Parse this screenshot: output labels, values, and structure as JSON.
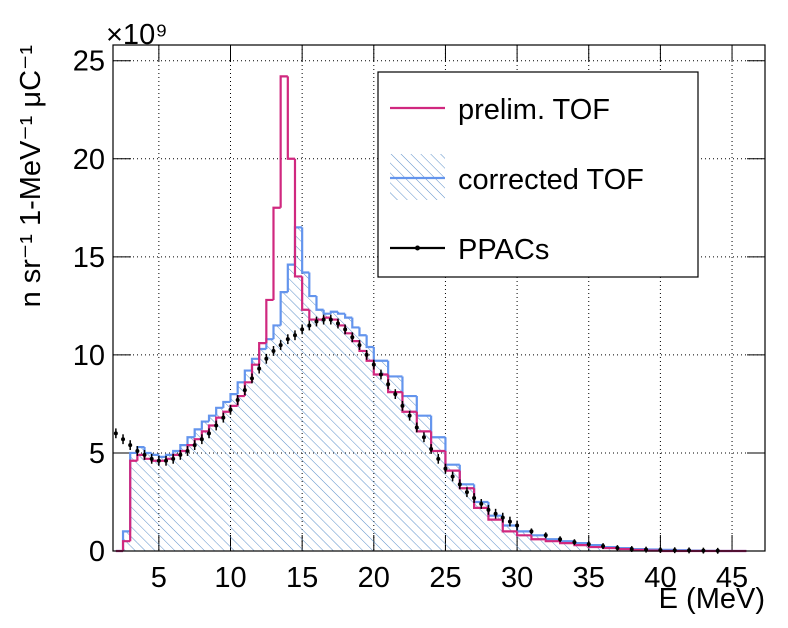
{
  "chart_data": {
    "type": "histogram",
    "x_label": "E (MeV)",
    "y_label": "n  sr⁻¹ 1-MeV⁻¹ μC⁻¹",
    "y_multiplier": "×10⁹",
    "xlim": [
      1.8,
      47.3
    ],
    "xticks": [
      5,
      10,
      15,
      20,
      25,
      30,
      35,
      40,
      45
    ],
    "ylim": [
      0,
      25.8
    ],
    "yticks": [
      0,
      5,
      10,
      15,
      20,
      25
    ],
    "grid": true,
    "legend": "top-right",
    "bins": [
      2,
      2.5,
      3,
      3.5,
      4,
      4.5,
      5,
      5.5,
      6,
      6.5,
      7,
      7.5,
      8,
      8.5,
      9,
      9.5,
      10,
      10.5,
      11,
      11.5,
      12,
      12.5,
      13,
      13.5,
      14,
      14.5,
      15,
      15.5,
      16,
      16.5,
      17,
      17.5,
      18,
      18.5,
      19,
      19.5,
      20,
      21,
      22,
      23,
      24,
      25,
      26,
      27,
      28,
      29,
      30,
      31,
      32,
      33,
      34,
      35,
      36,
      37,
      38,
      39,
      40,
      41,
      42,
      43,
      44,
      45,
      46
    ],
    "series": [
      {
        "name": "prelim. TOF",
        "color": "#d0287f",
        "draw": "step",
        "values": [
          0,
          0.5,
          4.6,
          4.9,
          4.7,
          4.6,
          4.6,
          4.7,
          4.9,
          5.1,
          5.4,
          5.7,
          6.1,
          6.4,
          6.8,
          7.1,
          7.4,
          7.9,
          8.6,
          9.5,
          10.6,
          12.8,
          17.5,
          24.2,
          20.0,
          14.0,
          12.3,
          11.8,
          11.8,
          11.9,
          11.8,
          11.5,
          11.1,
          10.7,
          10.2,
          9.7,
          9.0,
          8.1,
          7.1,
          6.1,
          5.1,
          4.1,
          3.2,
          2.2,
          1.6,
          1.0,
          0.8,
          0.6,
          0.5,
          0.4,
          0.3,
          0.2,
          0.15,
          0.1,
          0.05,
          0.02,
          0,
          0,
          0,
          0,
          0,
          0
        ]
      },
      {
        "name": "corrected TOF",
        "color": "#6495ed",
        "draw": "hatched-step",
        "values": [
          0,
          1.0,
          5.0,
          5.3,
          5.0,
          4.9,
          4.8,
          4.9,
          5.1,
          5.4,
          5.8,
          6.2,
          6.6,
          6.9,
          7.3,
          7.6,
          8.0,
          8.6,
          9.2,
          9.8,
          10.3,
          10.8,
          11.5,
          13.2,
          14.6,
          16.5,
          14.2,
          13.0,
          12.3,
          12.1,
          12.2,
          12.1,
          11.9,
          11.4,
          11.0,
          10.4,
          9.7,
          8.9,
          7.9,
          6.9,
          5.8,
          4.4,
          3.4,
          2.5,
          1.8,
          1.3,
          1.0,
          0.8,
          0.6,
          0.5,
          0.4,
          0.3,
          0.2,
          0.15,
          0.1,
          0.08,
          0.06,
          0.04,
          0.02,
          0.01,
          0,
          0
        ]
      },
      {
        "name": "PPACs",
        "color": "#000000",
        "draw": "points",
        "x": [
          2,
          2.5,
          3,
          3.5,
          4,
          4.5,
          5,
          5.5,
          6,
          6.5,
          7,
          7.5,
          8,
          8.5,
          9,
          9.5,
          10,
          10.5,
          11,
          11.5,
          12,
          12.5,
          13,
          13.5,
          14,
          14.5,
          15,
          15.5,
          16,
          16.5,
          17,
          17.5,
          18,
          18.5,
          19,
          19.5,
          20,
          20.5,
          21,
          21.5,
          22,
          22.5,
          23,
          23.5,
          24,
          24.5,
          25,
          25.5,
          26,
          26.5,
          27,
          27.5,
          28,
          28.5,
          29,
          29.5,
          30,
          31,
          32,
          33,
          34,
          35,
          36,
          37,
          38,
          39,
          40,
          41,
          42,
          43,
          44
        ],
        "values": [
          6.0,
          5.7,
          5.4,
          5.1,
          4.9,
          4.7,
          4.6,
          4.6,
          4.7,
          4.9,
          5.1,
          5.4,
          5.7,
          6.0,
          6.4,
          6.8,
          7.2,
          7.7,
          8.2,
          8.8,
          9.3,
          9.8,
          10.2,
          10.5,
          10.8,
          11.0,
          11.3,
          11.5,
          11.7,
          11.8,
          11.8,
          11.6,
          11.3,
          10.9,
          10.5,
          10.0,
          9.5,
          9.0,
          8.5,
          8.0,
          7.4,
          6.9,
          6.3,
          5.8,
          5.2,
          4.7,
          4.2,
          3.8,
          3.4,
          3.0,
          2.7,
          2.4,
          2.1,
          1.9,
          1.7,
          1.5,
          1.3,
          1.0,
          0.8,
          0.6,
          0.45,
          0.35,
          0.25,
          0.15,
          0.1,
          0.07,
          0.05,
          0.04,
          0.03,
          0.02,
          0.01
        ],
        "errors": [
          0.25,
          0.25,
          0.25,
          0.25,
          0.25,
          0.25,
          0.25,
          0.25,
          0.25,
          0.25,
          0.25,
          0.25,
          0.25,
          0.25,
          0.25,
          0.25,
          0.25,
          0.25,
          0.25,
          0.25,
          0.25,
          0.25,
          0.25,
          0.25,
          0.25,
          0.25,
          0.25,
          0.25,
          0.25,
          0.25,
          0.25,
          0.25,
          0.25,
          0.25,
          0.25,
          0.25,
          0.25,
          0.25,
          0.25,
          0.25,
          0.25,
          0.25,
          0.25,
          0.25,
          0.25,
          0.25,
          0.25,
          0.25,
          0.25,
          0.25,
          0.25,
          0.25,
          0.25,
          0.25,
          0.25,
          0.25,
          0.25,
          0.15,
          0.15,
          0.15,
          0.15,
          0.15,
          0.15,
          0.15,
          0.15,
          0.15,
          0.15,
          0.15,
          0.15,
          0.15,
          0.15
        ]
      }
    ]
  }
}
